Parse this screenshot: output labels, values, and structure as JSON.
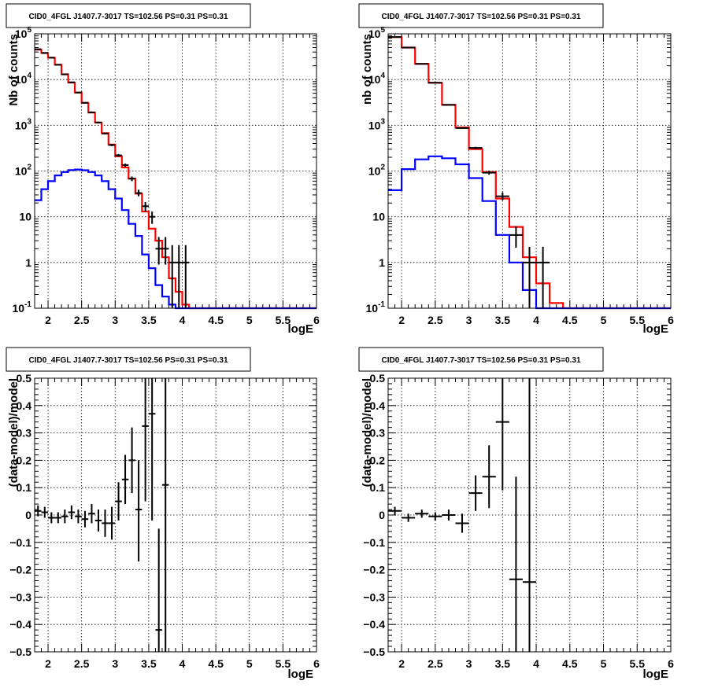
{
  "chart_data": [
    {
      "type": "step",
      "title": "CID0_4FGL J1407.7-3017 TS=102.56 PS=0.31 PS=0.31",
      "xlabel": "logE",
      "ylabel": "Nb of counts",
      "yscale": "log",
      "xlim": [
        1.8,
        6.0
      ],
      "ylim": [
        0.1,
        100000
      ],
      "grid": true,
      "xticks": [
        "2",
        "2.5",
        "3",
        "3.5",
        "4",
        "4.5",
        "5",
        "5.5",
        "6"
      ],
      "yticks": [
        {
          "v": 0.1,
          "base": "10",
          "exp": "-1"
        },
        {
          "v": 1,
          "label": "1"
        },
        {
          "v": 10,
          "label": "10"
        },
        {
          "v": 100,
          "base": "10",
          "exp": "2"
        },
        {
          "v": 1000,
          "base": "10",
          "exp": "3"
        },
        {
          "v": 10000,
          "base": "10",
          "exp": "4"
        },
        {
          "v": 100000,
          "base": "10",
          "exp": "5"
        }
      ],
      "bin_edges": [
        1.8,
        1.9,
        2.0,
        2.1,
        2.2,
        2.3,
        2.4,
        2.5,
        2.6,
        2.7,
        2.8,
        2.9,
        3.0,
        3.1,
        3.2,
        3.3,
        3.4,
        3.5,
        3.6,
        3.7,
        3.8,
        3.9,
        4.0,
        4.1,
        4.2,
        4.3,
        4.4,
        4.5,
        4.6,
        4.7,
        4.8,
        4.9,
        5.0,
        5.1,
        5.2,
        5.3,
        5.4,
        5.5,
        5.6,
        5.7,
        5.8,
        5.9,
        6.0
      ],
      "series": [
        {
          "color": "#ff0000",
          "values": [
            45000,
            38000,
            30000,
            21000,
            13000,
            8600,
            5200,
            3100,
            1900,
            1150,
            670,
            380,
            210,
            120,
            68,
            32,
            13,
            5.5,
            3,
            1.3,
            0.45,
            0.23,
            0.12,
            0.1,
            0.1,
            0.1,
            0.1,
            0.1,
            0.1,
            0.1,
            0.1,
            0.1,
            0.1,
            0.1,
            0.1,
            0.1,
            0.1,
            0.1,
            0.1,
            0.1,
            0.1,
            0.1
          ]
        },
        {
          "color": "#0000ff",
          "values": [
            23,
            40,
            60,
            80,
            95,
            105,
            108,
            104,
            95,
            80,
            60,
            40,
            25,
            14,
            7,
            3.8,
            1.5,
            0.75,
            0.32,
            0.18,
            0.12,
            0.1,
            0.1,
            0.1,
            0.1,
            0.1,
            0.1,
            0.1,
            0.1,
            0.1,
            0.1,
            0.1,
            0.1,
            0.1,
            0.1,
            0.1,
            0.1,
            0.1,
            0.1,
            0.1,
            0.1,
            0.1
          ]
        }
      ],
      "points": [
        {
          "x": 1.85,
          "y": 46000,
          "ylo": 45000,
          "yhi": 47000
        },
        {
          "x": 1.95,
          "y": 38000,
          "ylo": 37500,
          "yhi": 38500
        },
        {
          "x": 2.05,
          "y": 30000,
          "ylo": 29500,
          "yhi": 30500
        },
        {
          "x": 2.15,
          "y": 21000,
          "ylo": 20700,
          "yhi": 21300
        },
        {
          "x": 2.25,
          "y": 13000,
          "ylo": 12800,
          "yhi": 13200
        },
        {
          "x": 2.35,
          "y": 8700,
          "ylo": 8500,
          "yhi": 8900
        },
        {
          "x": 2.45,
          "y": 5200,
          "ylo": 5050,
          "yhi": 5350
        },
        {
          "x": 2.55,
          "y": 3100,
          "ylo": 3000,
          "yhi": 3200
        },
        {
          "x": 2.65,
          "y": 1920,
          "ylo": 1850,
          "yhi": 2000
        },
        {
          "x": 2.75,
          "y": 1150,
          "ylo": 1100,
          "yhi": 1200
        },
        {
          "x": 2.85,
          "y": 660,
          "ylo": 630,
          "yhi": 690
        },
        {
          "x": 2.95,
          "y": 370,
          "ylo": 350,
          "yhi": 390
        },
        {
          "x": 3.05,
          "y": 220,
          "ylo": 205,
          "yhi": 235
        },
        {
          "x": 3.15,
          "y": 135,
          "ylo": 124,
          "yhi": 146
        },
        {
          "x": 3.25,
          "y": 68,
          "ylo": 60,
          "yhi": 76
        },
        {
          "x": 3.35,
          "y": 33,
          "ylo": 28,
          "yhi": 39
        },
        {
          "x": 3.45,
          "y": 17,
          "ylo": 13,
          "yhi": 21
        },
        {
          "x": 3.55,
          "y": 10,
          "ylo": 7,
          "yhi": 13
        },
        {
          "x": 3.65,
          "y": 2,
          "ylo": 0.9,
          "yhi": 3.6
        },
        {
          "x": 3.75,
          "y": 2,
          "ylo": 0.9,
          "yhi": 3.6
        },
        {
          "x": 3.85,
          "y": 1,
          "ylo": 0.1,
          "yhi": 2.4
        },
        {
          "x": 3.95,
          "y": 1,
          "ylo": 0.1,
          "yhi": 2.4
        },
        {
          "x": 4.05,
          "y": 1,
          "ylo": 0.1,
          "yhi": 2.4
        }
      ]
    },
    {
      "type": "step",
      "title": "CID0_4FGL J1407.7-3017 TS=102.56 PS=0.31 PS=0.31",
      "xlabel": "logE",
      "ylabel": "nb of counts",
      "yscale": "log",
      "xlim": [
        1.8,
        6.0
      ],
      "ylim": [
        0.1,
        100000
      ],
      "grid": true,
      "xticks": [
        "2",
        "2.5",
        "3",
        "3.5",
        "4",
        "4.5",
        "5",
        "5.5",
        "6"
      ],
      "yticks": [
        {
          "v": 0.1,
          "base": "10",
          "exp": "-1"
        },
        {
          "v": 1,
          "label": "1"
        },
        {
          "v": 10,
          "label": "10"
        },
        {
          "v": 100,
          "base": "10",
          "exp": "2"
        },
        {
          "v": 1000,
          "base": "10",
          "exp": "3"
        },
        {
          "v": 10000,
          "base": "10",
          "exp": "4"
        },
        {
          "v": 100000,
          "base": "10",
          "exp": "5"
        }
      ],
      "bin_edges": [
        1.8,
        2.0,
        2.2,
        2.4,
        2.6,
        2.8,
        3.0,
        3.2,
        3.4,
        3.6,
        3.8,
        4.0,
        4.2,
        4.4,
        4.6,
        4.8,
        5.0,
        5.2,
        5.4,
        5.6,
        5.8,
        6.0
      ],
      "series": [
        {
          "color": "#ff0000",
          "values": [
            85000,
            50000,
            22000,
            8500,
            2800,
            900,
            300,
            95,
            25,
            6,
            1.3,
            0.35,
            0.13,
            0.1,
            0.1,
            0.1,
            0.1,
            0.1,
            0.1,
            0.1,
            0.1
          ]
        },
        {
          "color": "#0000ff",
          "values": [
            38,
            110,
            180,
            210,
            190,
            140,
            70,
            22,
            4,
            1,
            0.25,
            0.1,
            0.1,
            0.1,
            0.1,
            0.1,
            0.1,
            0.1,
            0.1,
            0.1,
            0.1
          ]
        }
      ],
      "points": [
        {
          "x": 1.9,
          "y": 85000,
          "ylo": 84000,
          "yhi": 86000
        },
        {
          "x": 2.1,
          "y": 50000,
          "ylo": 49500,
          "yhi": 50500
        },
        {
          "x": 2.3,
          "y": 22000,
          "ylo": 21700,
          "yhi": 22300
        },
        {
          "x": 2.5,
          "y": 8500,
          "ylo": 8300,
          "yhi": 8700
        },
        {
          "x": 2.7,
          "y": 2800,
          "ylo": 2700,
          "yhi": 2900
        },
        {
          "x": 2.9,
          "y": 870,
          "ylo": 840,
          "yhi": 900
        },
        {
          "x": 3.1,
          "y": 320,
          "ylo": 302,
          "yhi": 338
        },
        {
          "x": 3.3,
          "y": 92,
          "ylo": 83,
          "yhi": 102
        },
        {
          "x": 3.5,
          "y": 28,
          "ylo": 23,
          "yhi": 34
        },
        {
          "x": 3.7,
          "y": 4,
          "ylo": 2.1,
          "yhi": 6.2
        },
        {
          "x": 3.9,
          "y": 1,
          "ylo": 0.1,
          "yhi": 2.2
        },
        {
          "x": 4.1,
          "y": 1,
          "ylo": 0.1,
          "yhi": 2.2
        }
      ]
    },
    {
      "type": "scatter",
      "title": "CID0_4FGL J1407.7-3017 TS=102.56 PS=0.31 PS=0.31",
      "xlabel": "logE",
      "ylabel": "(data-model)/model",
      "yscale": "linear",
      "xlim": [
        1.8,
        6.0
      ],
      "ylim": [
        -0.5,
        0.5
      ],
      "grid": true,
      "xticks": [
        "2",
        "2.5",
        "3",
        "3.5",
        "4",
        "4.5",
        "5",
        "5.5",
        "6"
      ],
      "yticks": [
        {
          "v": -0.5,
          "label": "−0.5"
        },
        {
          "v": -0.4,
          "label": "−0.4"
        },
        {
          "v": -0.3,
          "label": "−0.3"
        },
        {
          "v": -0.2,
          "label": "−0.2"
        },
        {
          "v": -0.1,
          "label": "−0.1"
        },
        {
          "v": 0,
          "label": "0"
        },
        {
          "v": 0.1,
          "label": "0.1"
        },
        {
          "v": 0.2,
          "label": "0.2"
        },
        {
          "v": 0.3,
          "label": "0.3"
        },
        {
          "v": 0.4,
          "label": "0.4"
        },
        {
          "v": 0.5,
          "label": "0.5"
        }
      ],
      "xhalf": 0.05,
      "points": [
        {
          "x": 1.85,
          "y": 0.015,
          "ylo": -0.005,
          "yhi": 0.035
        },
        {
          "x": 1.95,
          "y": 0.01,
          "ylo": -0.01,
          "yhi": 0.03
        },
        {
          "x": 2.05,
          "y": -0.01,
          "ylo": -0.03,
          "yhi": 0.01
        },
        {
          "x": 2.15,
          "y": -0.01,
          "ylo": -0.03,
          "yhi": 0.01
        },
        {
          "x": 2.25,
          "y": -0.005,
          "ylo": -0.03,
          "yhi": 0.02
        },
        {
          "x": 2.35,
          "y": 0.01,
          "ylo": -0.015,
          "yhi": 0.035
        },
        {
          "x": 2.45,
          "y": -0.005,
          "ylo": -0.03,
          "yhi": 0.02
        },
        {
          "x": 2.55,
          "y": -0.015,
          "ylo": -0.045,
          "yhi": 0.015
        },
        {
          "x": 2.65,
          "y": 0.005,
          "ylo": -0.03,
          "yhi": 0.04
        },
        {
          "x": 2.75,
          "y": -0.02,
          "ylo": -0.06,
          "yhi": 0.02
        },
        {
          "x": 2.85,
          "y": -0.03,
          "ylo": -0.08,
          "yhi": 0.02
        },
        {
          "x": 2.95,
          "y": -0.03,
          "ylo": -0.09,
          "yhi": 0.03
        },
        {
          "x": 3.05,
          "y": 0.05,
          "ylo": -0.02,
          "yhi": 0.12
        },
        {
          "x": 3.15,
          "y": 0.13,
          "ylo": 0.04,
          "yhi": 0.22
        },
        {
          "x": 3.25,
          "y": 0.2,
          "ylo": 0.08,
          "yhi": 0.32
        },
        {
          "x": 3.35,
          "y": 0.02,
          "ylo": -0.17,
          "yhi": 0.2
        },
        {
          "x": 3.45,
          "y": 0.325,
          "ylo": 0.05,
          "yhi": 0.5
        },
        {
          "x": 3.55,
          "y": 0.37,
          "ylo": -0.02,
          "yhi": 0.5
        },
        {
          "x": 3.65,
          "y": -0.42,
          "ylo": -0.5,
          "yhi": -0.05
        },
        {
          "x": 3.75,
          "y": 0.11,
          "ylo": -0.5,
          "yhi": 0.5
        }
      ]
    },
    {
      "type": "scatter",
      "title": "CID0_4FGL J1407.7-3017 TS=102.56 PS=0.31 PS=0.31",
      "xlabel": "logE",
      "ylabel": "(data-model)/model",
      "yscale": "linear",
      "xlim": [
        1.8,
        6.0
      ],
      "ylim": [
        -0.5,
        0.5
      ],
      "grid": true,
      "xticks": [
        "2",
        "2.5",
        "3",
        "3.5",
        "4",
        "4.5",
        "5",
        "5.5",
        "6"
      ],
      "yticks": [
        {
          "v": -0.5,
          "label": "−0.5"
        },
        {
          "v": -0.4,
          "label": "−0.4"
        },
        {
          "v": -0.3,
          "label": "−0.3"
        },
        {
          "v": -0.2,
          "label": "−0.2"
        },
        {
          "v": -0.1,
          "label": "−0.1"
        },
        {
          "v": 0,
          "label": "0"
        },
        {
          "v": 0.1,
          "label": "0.1"
        },
        {
          "v": 0.2,
          "label": "0.2"
        },
        {
          "v": 0.3,
          "label": "0.3"
        },
        {
          "v": 0.4,
          "label": "0.4"
        },
        {
          "v": 0.5,
          "label": "0.5"
        }
      ],
      "xhalf": 0.1,
      "points": [
        {
          "x": 1.9,
          "y": 0.015,
          "ylo": 0.0,
          "yhi": 0.03
        },
        {
          "x": 2.1,
          "y": -0.01,
          "ylo": -0.025,
          "yhi": 0.005
        },
        {
          "x": 2.3,
          "y": 0.005,
          "ylo": -0.01,
          "yhi": 0.02
        },
        {
          "x": 2.5,
          "y": -0.005,
          "ylo": -0.02,
          "yhi": 0.01
        },
        {
          "x": 2.7,
          "y": 0.0,
          "ylo": -0.02,
          "yhi": 0.02
        },
        {
          "x": 2.9,
          "y": -0.03,
          "ylo": -0.065,
          "yhi": 0.005
        },
        {
          "x": 3.1,
          "y": 0.08,
          "ylo": 0.015,
          "yhi": 0.145
        },
        {
          "x": 3.3,
          "y": 0.14,
          "ylo": 0.025,
          "yhi": 0.255
        },
        {
          "x": 3.5,
          "y": 0.34,
          "ylo": 0.09,
          "yhi": 0.5
        },
        {
          "x": 3.7,
          "y": -0.235,
          "ylo": -0.5,
          "yhi": 0.14
        },
        {
          "x": 3.9,
          "y": -0.245,
          "ylo": -0.5,
          "yhi": 0.5
        }
      ]
    }
  ]
}
